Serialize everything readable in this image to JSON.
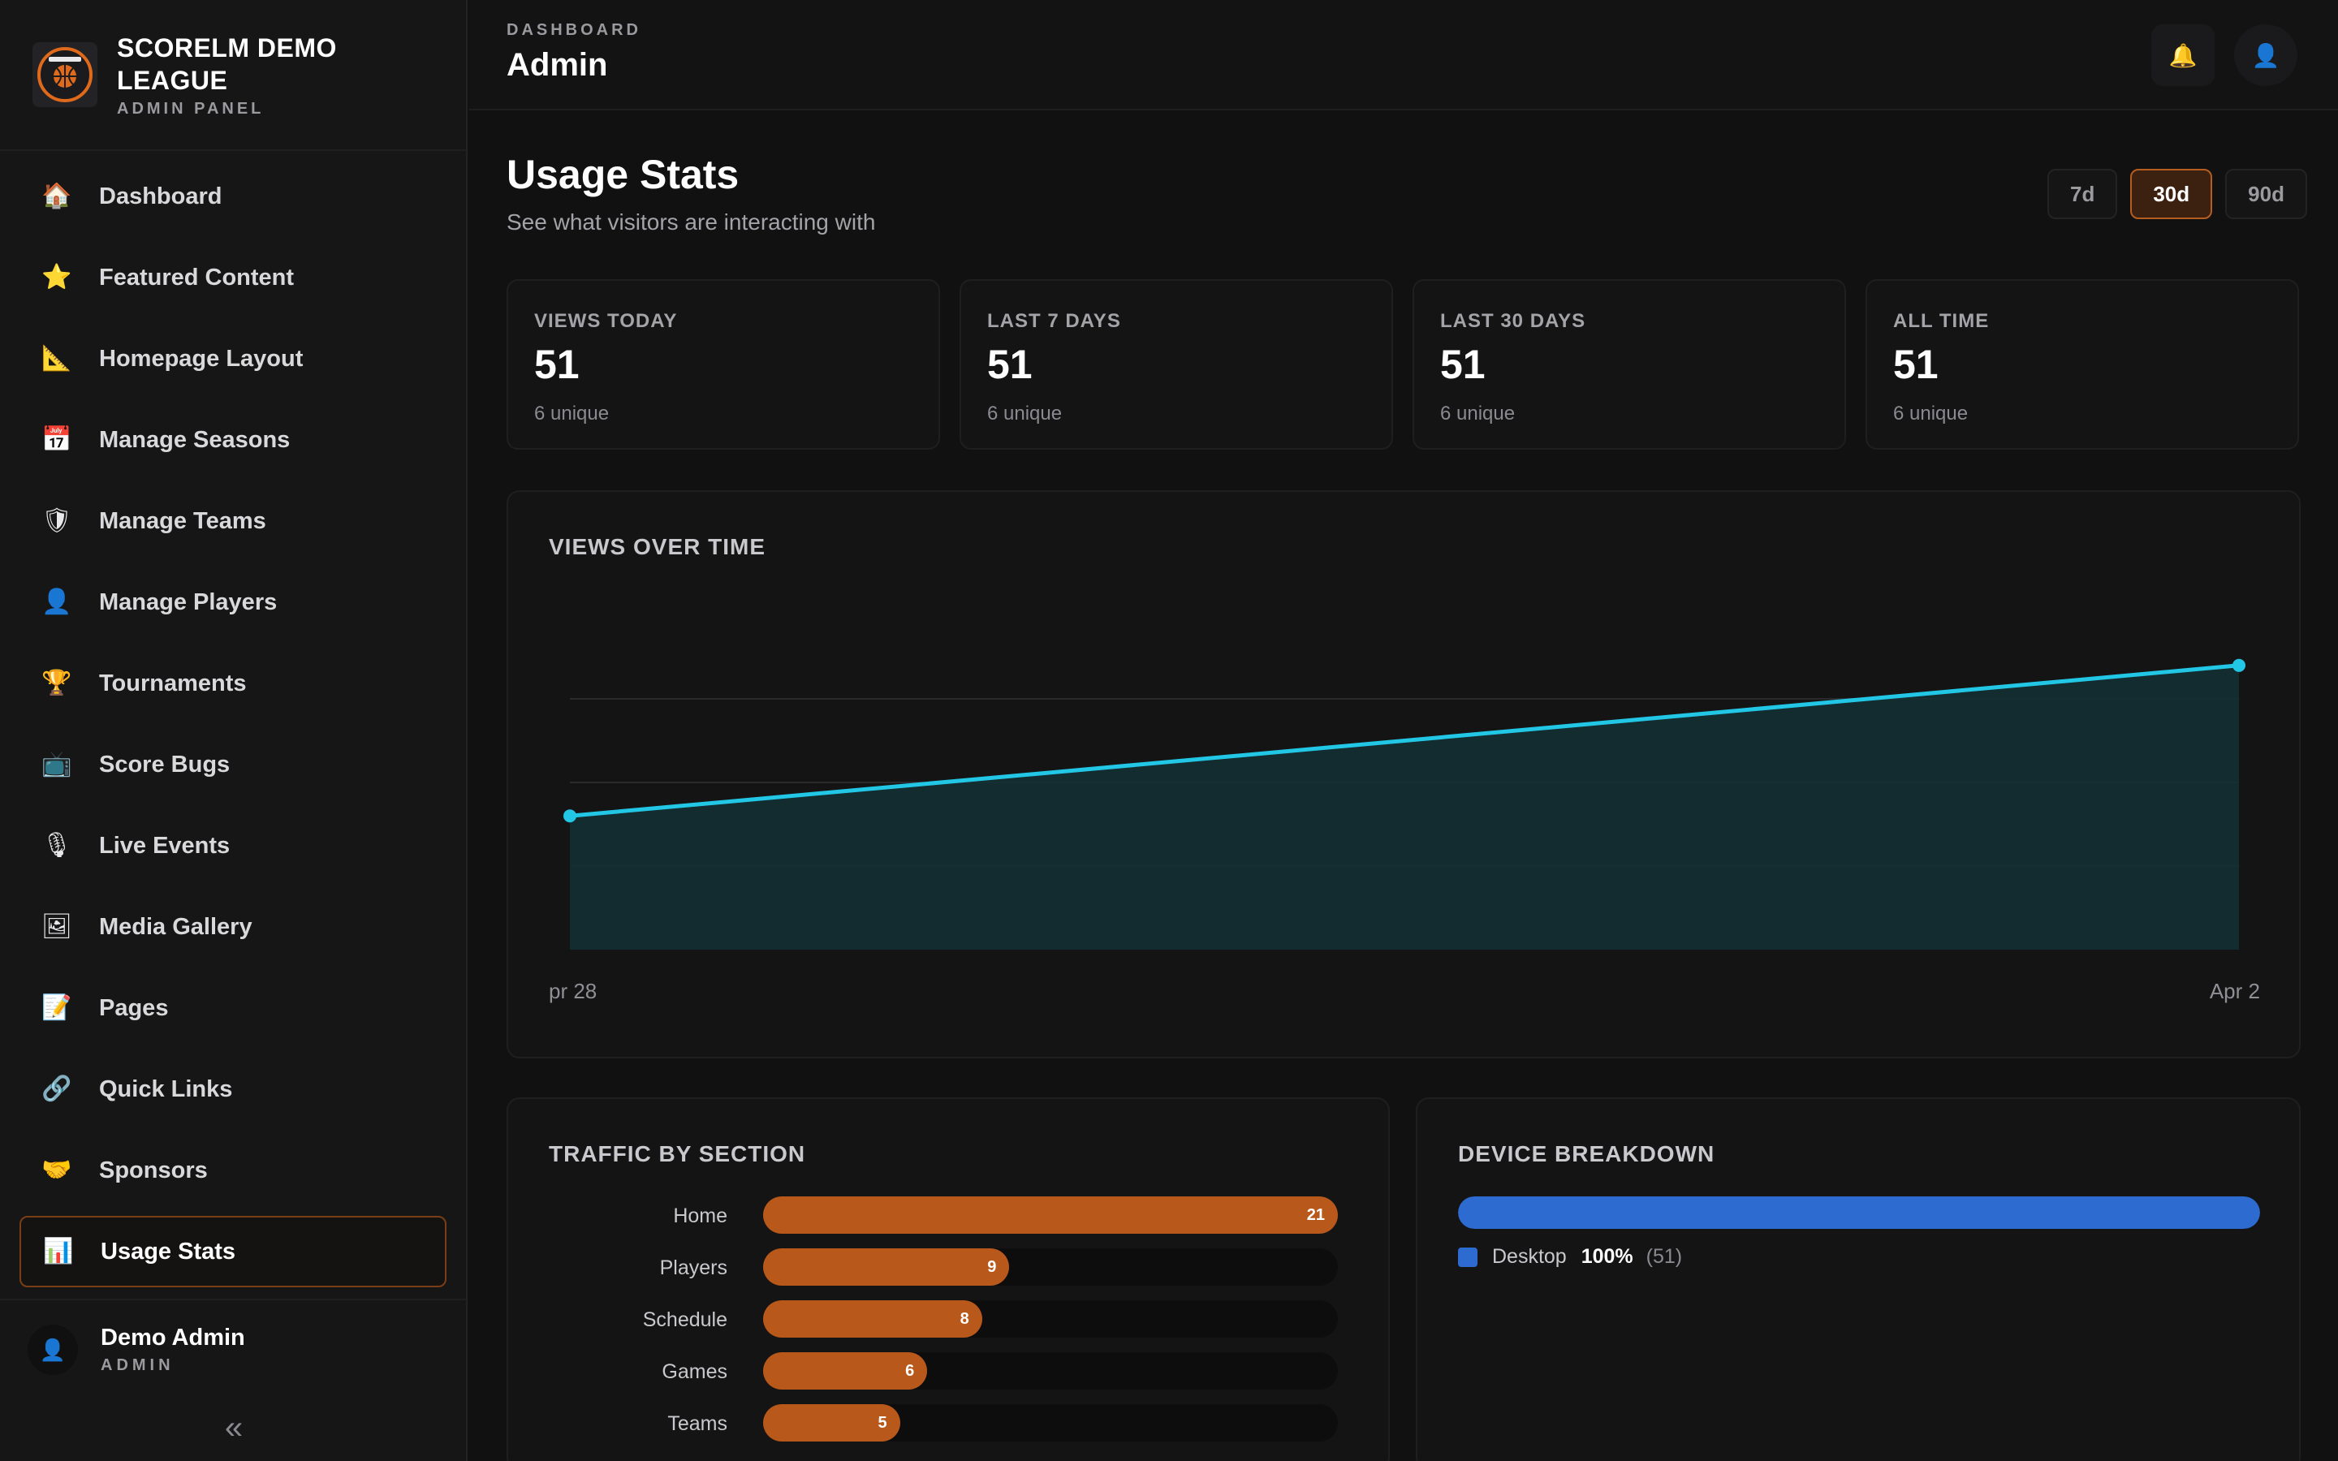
{
  "brand": {
    "title": "SCORELM DEMO LEAGUE",
    "subtitle": "ADMIN PANEL",
    "logo_icon": "basketball-badge-icon"
  },
  "sidebar": {
    "items": [
      {
        "label": "Dashboard",
        "icon": "🏠",
        "icon_name": "house-icon",
        "active": false
      },
      {
        "label": "Featured Content",
        "icon": "⭐",
        "icon_name": "star-icon",
        "active": false
      },
      {
        "label": "Homepage Layout",
        "icon": "📐",
        "icon_name": "ruler-icon",
        "active": false
      },
      {
        "label": "Manage Seasons",
        "icon": "📅",
        "icon_name": "calendar-icon",
        "active": false
      },
      {
        "label": "Manage Teams",
        "icon": "🛡",
        "icon_name": "shield-icon",
        "active": false
      },
      {
        "label": "Manage Players",
        "icon": "👤",
        "icon_name": "user-icon",
        "active": false
      },
      {
        "label": "Tournaments",
        "icon": "🏆",
        "icon_name": "trophy-icon",
        "active": false
      },
      {
        "label": "Score Bugs",
        "icon": "📺",
        "icon_name": "tv-icon",
        "active": false
      },
      {
        "label": "Live Events",
        "icon": "🎙",
        "icon_name": "microphone-icon",
        "active": false
      },
      {
        "label": "Media Gallery",
        "icon": "🖼",
        "icon_name": "picture-icon",
        "active": false
      },
      {
        "label": "Pages",
        "icon": "📝",
        "icon_name": "memo-icon",
        "active": false
      },
      {
        "label": "Quick Links",
        "icon": "🔗",
        "icon_name": "link-icon",
        "active": false
      },
      {
        "label": "Sponsors",
        "icon": "🤝",
        "icon_name": "handshake-icon",
        "active": false
      },
      {
        "label": "Usage Stats",
        "icon": "📊",
        "icon_name": "bar-chart-icon",
        "active": true
      }
    ]
  },
  "user": {
    "name": "Demo Admin",
    "role": "ADMIN",
    "avatar_icon": "👤"
  },
  "collapse_icon": "«",
  "topbar": {
    "breadcrumb": "DASHBOARD",
    "title": "Admin",
    "bell_icon": "🔔",
    "profile_icon": "👤"
  },
  "usage": {
    "title": "Usage Stats",
    "subtitle": "See what visitors are interacting with",
    "ranges": [
      {
        "label": "7d",
        "active": false
      },
      {
        "label": "30d",
        "active": true
      },
      {
        "label": "90d",
        "active": false
      }
    ]
  },
  "stats": [
    {
      "label": "VIEWS TODAY",
      "value": "51",
      "sub": "6 unique"
    },
    {
      "label": "LAST 7 DAYS",
      "value": "51",
      "sub": "6 unique"
    },
    {
      "label": "LAST 30 DAYS",
      "value": "51",
      "sub": "6 unique"
    },
    {
      "label": "ALL TIME",
      "value": "51",
      "sub": "6 unique"
    }
  ],
  "views_chart": {
    "title": "VIEWS OVER TIME",
    "x_start_label": "pr 28",
    "x_end_label": "Apr 2",
    "line_color": "#22c7e6"
  },
  "traffic": {
    "title": "TRAFFIC BY SECTION",
    "bar_color": "#b8581a"
  },
  "device": {
    "title": "DEVICE BREAKDOWN",
    "color": "#2d6bd1",
    "items": [
      {
        "name": "Desktop",
        "pct": "100%",
        "count": "(51)",
        "fraction": 1.0
      }
    ]
  },
  "chart_data": [
    {
      "type": "area",
      "title": "VIEWS OVER TIME",
      "x": [
        "pr 28",
        "Apr 2"
      ],
      "series": [
        {
          "values": [
            24,
            51
          ]
        }
      ],
      "ylim": [
        0,
        60
      ],
      "grid": true,
      "line_color": "#22c7e6"
    },
    {
      "type": "bar",
      "orientation": "horizontal",
      "title": "TRAFFIC BY SECTION",
      "categories": [
        "Home",
        "Players",
        "Schedule",
        "Games",
        "Teams"
      ],
      "values": [
        21,
        9,
        8,
        6,
        5
      ],
      "xlim": [
        0,
        21
      ],
      "bar_color": "#b8581a"
    }
  ]
}
